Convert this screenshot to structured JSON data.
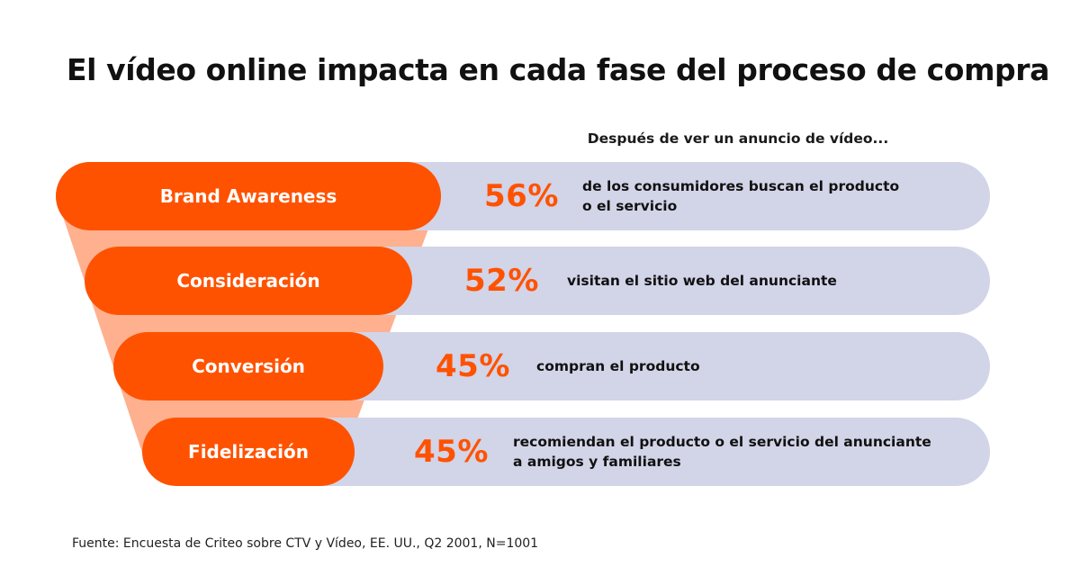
{
  "title": "El vídeo online impacta en cada fase del proceso de compra",
  "subtitle": "Después de ver un anuncio de vídeo...",
  "colors": {
    "accent": "#ff5200",
    "funnel_fill": "#ffb08e",
    "bar_bg": "#d2d4e8"
  },
  "stages": [
    {
      "label": "Brand Awareness",
      "percent": "56%",
      "description": "de los consumidores buscan el producto\no el servicio"
    },
    {
      "label": "Consideración",
      "percent": "52%",
      "description": "visitan el sitio web del anunciante"
    },
    {
      "label": "Conversión",
      "percent": "45%",
      "description": "compran el producto"
    },
    {
      "label": "Fidelización",
      "percent": "45%",
      "description": "recomiendan el producto o el servicio del anunciante\na amigos y familiares"
    }
  ],
  "source": "Fuente: Encuesta de Criteo sobre CTV y Vídeo, EE. UU., Q2 2001, N=1001"
}
